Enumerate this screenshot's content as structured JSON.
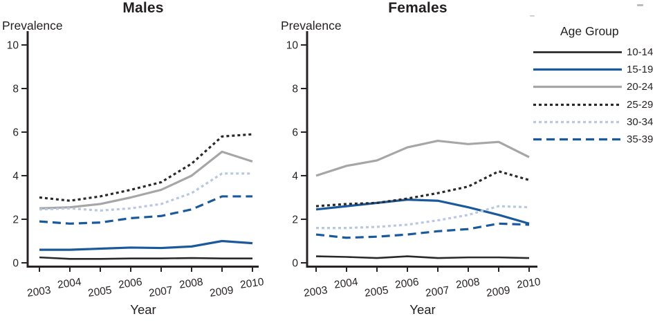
{
  "page": {
    "background": "#ffffff",
    "ink_color": "#272324",
    "title_color": "#231f20"
  },
  "legend": {
    "title": "Age Group",
    "position": "right",
    "items": [
      {
        "label": "10-14",
        "color": "#2b2828",
        "dash": "solid"
      },
      {
        "label": "15-19",
        "color": "#1a5a9c",
        "dash": "solid"
      },
      {
        "label": "20-24",
        "color": "#a6a6a6",
        "dash": "solid"
      },
      {
        "label": "25-29",
        "color": "#2b2828",
        "dash": "dot"
      },
      {
        "label": "30-34",
        "color": "#b9c7e3",
        "dash": "dot"
      },
      {
        "label": "35-39",
        "color": "#1a5a9c",
        "dash": "dash"
      }
    ]
  },
  "chart_data": [
    {
      "type": "line",
      "title": "Males",
      "ylabel": "Prevalence",
      "xlabel": "Year",
      "ylim": [
        0,
        10
      ],
      "yticks": [
        0,
        2,
        4,
        6,
        8,
        10
      ],
      "grid": false,
      "x": [
        2003,
        2004,
        2005,
        2006,
        2007,
        2008,
        2009,
        2010
      ],
      "series": [
        {
          "name": "10-14",
          "values": [
            0.25,
            0.18,
            0.18,
            0.2,
            0.2,
            0.22,
            0.2,
            0.2
          ]
        },
        {
          "name": "15-19",
          "values": [
            0.6,
            0.6,
            0.65,
            0.7,
            0.68,
            0.75,
            1.0,
            0.9
          ]
        },
        {
          "name": "20-24",
          "values": [
            2.5,
            2.55,
            2.7,
            3.0,
            3.35,
            4.0,
            5.1,
            4.65
          ]
        },
        {
          "name": "25-29",
          "values": [
            3.0,
            2.85,
            3.05,
            3.35,
            3.7,
            4.55,
            5.8,
            5.9
          ]
        },
        {
          "name": "30-34",
          "values": [
            2.45,
            2.5,
            2.4,
            2.5,
            2.7,
            3.2,
            4.1,
            4.1
          ]
        },
        {
          "name": "35-39",
          "values": [
            1.9,
            1.8,
            1.85,
            2.05,
            2.15,
            2.45,
            3.05,
            3.05
          ]
        }
      ]
    },
    {
      "type": "line",
      "title": "Females",
      "ylabel": "Prevalence",
      "xlabel": "Year",
      "ylim": [
        0,
        10
      ],
      "yticks": [
        0,
        2,
        4,
        6,
        8,
        10
      ],
      "grid": false,
      "x": [
        2003,
        2004,
        2005,
        2006,
        2007,
        2008,
        2009,
        2010
      ],
      "series": [
        {
          "name": "10-14",
          "values": [
            0.3,
            0.27,
            0.22,
            0.3,
            0.22,
            0.25,
            0.25,
            0.22
          ]
        },
        {
          "name": "15-19",
          "values": [
            2.45,
            2.6,
            2.75,
            2.9,
            2.85,
            2.55,
            2.2,
            1.8
          ]
        },
        {
          "name": "20-24",
          "values": [
            4.0,
            4.45,
            4.7,
            5.3,
            5.6,
            5.45,
            5.55,
            4.85
          ]
        },
        {
          "name": "25-29",
          "values": [
            2.6,
            2.7,
            2.75,
            2.95,
            3.2,
            3.5,
            4.2,
            3.8
          ]
        },
        {
          "name": "30-34",
          "values": [
            1.6,
            1.6,
            1.65,
            1.75,
            1.95,
            2.2,
            2.6,
            2.55
          ]
        },
        {
          "name": "35-39",
          "values": [
            1.3,
            1.15,
            1.2,
            1.3,
            1.45,
            1.55,
            1.8,
            1.75
          ]
        }
      ]
    }
  ]
}
